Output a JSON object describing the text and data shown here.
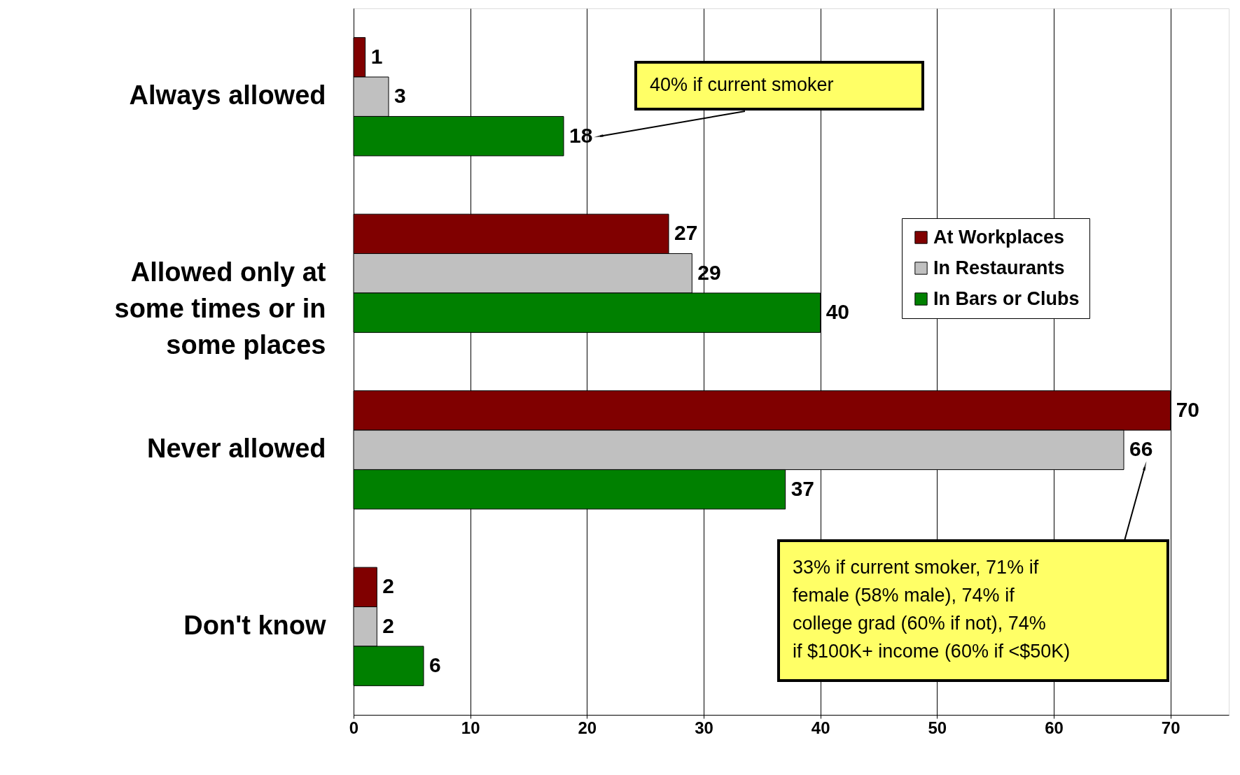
{
  "chart_data": {
    "type": "bar",
    "orientation": "horizontal",
    "categories": [
      "Always allowed",
      "Allowed only at some times or in some places",
      "Never allowed",
      "Don't know"
    ],
    "series": [
      {
        "name": "At Workplaces",
        "color": "#800000",
        "values": [
          1,
          27,
          70,
          2
        ]
      },
      {
        "name": "In Restaurants",
        "color": "#c0c0c0",
        "values": [
          3,
          29,
          66,
          2
        ]
      },
      {
        "name": "In Bars or Clubs",
        "color": "#008000",
        "values": [
          18,
          40,
          37,
          6
        ]
      }
    ],
    "xlim": [
      0,
      75
    ],
    "xticks": [
      0,
      10,
      20,
      30,
      40,
      50,
      60,
      70
    ],
    "grid": "x",
    "legend": "top right",
    "data_labels": true,
    "annotations": [
      "40% if current smoker",
      "33% if current smoker, 71% if female (58% male), 74% if college grad (60% if not), 74% if $100K+ income (60% if <$50K)"
    ]
  }
}
